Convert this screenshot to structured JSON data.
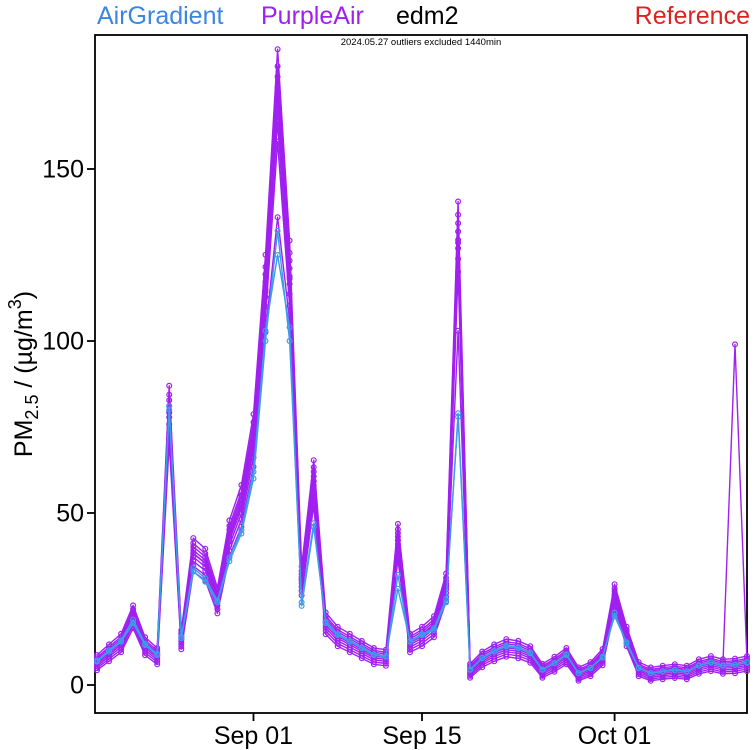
{
  "legend": {
    "items": [
      {
        "label": "AirGradient",
        "color": "#3A86E0"
      },
      {
        "label": "PurpleAir",
        "color": "#A020F0"
      },
      {
        "label": "edm2",
        "color": "#000000"
      },
      {
        "label": "Reference",
        "color": "#DD2222"
      }
    ]
  },
  "subtitle": "2024.05.27 outliers excluded 1440min",
  "chart_data": {
    "type": "line",
    "title": "",
    "subtitle": "2024.05.27 outliers excluded 1440min",
    "ylabel": {
      "main": "PM",
      "sub": "2.5",
      "mid": " / (µg/m",
      "sup": "3",
      "end": ")"
    },
    "xlabel": "",
    "x_unit": "daily points, day index 0 = Aug 19, last index 54 = Oct 12",
    "x_days": 55,
    "x_ticks": [
      {
        "day": 13,
        "label": "Sep 01"
      },
      {
        "day": 27,
        "label": "Sep 15"
      },
      {
        "day": 43,
        "label": "Oct 01"
      }
    ],
    "y_ticks": [
      0,
      50,
      100,
      150
    ],
    "ylim": [
      -8,
      189
    ],
    "grid": false,
    "legend_position": "top",
    "marker": "open-circle",
    "median": [
      7,
      10,
      13,
      21,
      12,
      9,
      83,
      14,
      40,
      37,
      26,
      45,
      55,
      75,
      120,
      178,
      124,
      32,
      62,
      19,
      15,
      13,
      11,
      9,
      8.5,
      44,
      13,
      15,
      18,
      30,
      135,
      4.5,
      8,
      10,
      11.5,
      11,
      9.5,
      4.5,
      6.5,
      9,
      3.5,
      5,
      8.7,
      27,
      15,
      5,
      3.5,
      4,
      4.4,
      4,
      5.8,
      6.7,
      5.8,
      6,
      6.7
    ],
    "series": [
      {
        "name": "PurpleAir-1",
        "group": "PurpleAir",
        "color": "#A020F0",
        "scale": 1.03,
        "offset": 1.5
      },
      {
        "name": "PurpleAir-2",
        "group": "PurpleAir",
        "color": "#A020F0",
        "scale": 1.005,
        "offset": 1.0
      },
      {
        "name": "PurpleAir-3",
        "group": "PurpleAir",
        "color": "#A020F0",
        "scale": 0.99,
        "offset": 0.6
      },
      {
        "name": "PurpleAir-4",
        "group": "PurpleAir",
        "color": "#A020F0",
        "scale": 0.975,
        "offset": 0.2
      },
      {
        "name": "PurpleAir-5",
        "group": "PurpleAir",
        "color": "#A020F0",
        "scale": 0.96,
        "offset": -0.2
      },
      {
        "name": "PurpleAir-6",
        "group": "PurpleAir",
        "color": "#A020F0",
        "scale": 0.945,
        "offset": -0.6
      },
      {
        "name": "PurpleAir-7",
        "group": "PurpleAir",
        "color": "#A020F0",
        "scale": 0.925,
        "offset": -1.0
      },
      {
        "name": "PurpleAir-8",
        "group": "PurpleAir",
        "color": "#A020F0",
        "scale": 0.9,
        "offset": -1.4,
        "overrides": {
          "15": 158
        }
      },
      {
        "name": "PurpleAir-9",
        "group": "PurpleAir",
        "color": "#A020F0",
        "scale": 0.87,
        "offset": -1.8,
        "overrides": {
          "15": 136,
          "30": 103
        }
      },
      {
        "name": "PurpleAir-10",
        "group": "PurpleAir",
        "color": "#A020F0",
        "scale": 0.95,
        "offset": 0.3,
        "overrides": {
          "53": 99
        }
      },
      {
        "name": "AirGradient-1",
        "group": "AirGradient",
        "color": "#3D9BEC",
        "values": [
          6.8,
          9.7,
          12.6,
          18,
          11.6,
          8.7,
          80,
          13.6,
          33,
          30,
          24,
          36,
          44,
          60,
          100,
          132,
          100,
          24,
          47,
          18,
          14.5,
          12.6,
          10.7,
          8.7,
          8.2,
          32,
          12.6,
          14.5,
          16,
          24,
          79,
          4.4,
          7.8,
          9.7,
          11.2,
          10.7,
          9.2,
          4.4,
          6.3,
          8.7,
          3.4,
          4.9,
          8.0,
          21,
          12,
          4.9,
          3.4,
          3.9,
          4.3,
          3.9,
          5.6,
          6.5,
          5.6,
          5.8,
          6.5
        ]
      },
      {
        "name": "AirGradient-2",
        "group": "AirGradient",
        "color": "#3D9BEC",
        "values": [
          7.1,
          10.1,
          13,
          19,
          12,
          9,
          81,
          14,
          34,
          31,
          24.5,
          37,
          45,
          62,
          103,
          125,
          104,
          23,
          46,
          18.4,
          14.8,
          12.8,
          10.9,
          8.9,
          8.4,
          28,
          12.8,
          14.8,
          16.5,
          25,
          78,
          4.5,
          7.9,
          9.9,
          11.4,
          10.9,
          9.4,
          4.5,
          6.4,
          8.9,
          3.5,
          5,
          8.2,
          20,
          12.4,
          5,
          3.5,
          4,
          4.4,
          4,
          5.7,
          6.6,
          5.7,
          5.9,
          6.6
        ]
      }
    ]
  },
  "geometry_note": "plot box x 95-747 px, y 35-713 px; y value 0 at 685px, 3.44 px per unit"
}
